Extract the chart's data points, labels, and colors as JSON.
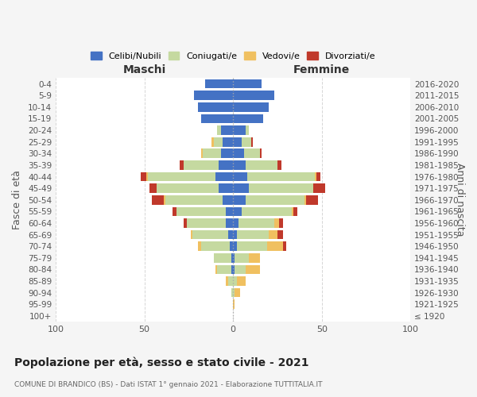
{
  "age_groups": [
    "100+",
    "95-99",
    "90-94",
    "85-89",
    "80-84",
    "75-79",
    "70-74",
    "65-69",
    "60-64",
    "55-59",
    "50-54",
    "45-49",
    "40-44",
    "35-39",
    "30-34",
    "25-29",
    "20-24",
    "15-19",
    "10-14",
    "5-9",
    "0-4"
  ],
  "birth_years": [
    "≤ 1920",
    "1921-1925",
    "1926-1930",
    "1931-1935",
    "1936-1940",
    "1941-1945",
    "1946-1950",
    "1951-1955",
    "1956-1960",
    "1961-1965",
    "1966-1970",
    "1971-1975",
    "1976-1980",
    "1981-1985",
    "1986-1990",
    "1991-1995",
    "1996-2000",
    "2001-2005",
    "2006-2010",
    "2011-2015",
    "2016-2020"
  ],
  "maschi": {
    "celibi": [
      0,
      0,
      0,
      0,
      1,
      1,
      2,
      3,
      4,
      4,
      6,
      8,
      10,
      8,
      7,
      6,
      7,
      18,
      20,
      22,
      16
    ],
    "coniugati": [
      0,
      0,
      1,
      3,
      8,
      10,
      16,
      20,
      22,
      28,
      32,
      35,
      38,
      20,
      10,
      5,
      2,
      0,
      0,
      0,
      0
    ],
    "vedovi": [
      0,
      0,
      0,
      1,
      1,
      0,
      2,
      1,
      0,
      0,
      1,
      0,
      1,
      0,
      1,
      1,
      0,
      0,
      0,
      0,
      0
    ],
    "divorziati": [
      0,
      0,
      0,
      0,
      0,
      0,
      0,
      0,
      2,
      2,
      7,
      4,
      3,
      2,
      0,
      0,
      0,
      0,
      0,
      0,
      0
    ]
  },
  "femmine": {
    "nubili": [
      0,
      0,
      0,
      0,
      1,
      1,
      2,
      2,
      3,
      5,
      7,
      9,
      8,
      7,
      6,
      5,
      7,
      17,
      20,
      23,
      16
    ],
    "coniugate": [
      0,
      0,
      1,
      2,
      6,
      8,
      17,
      18,
      20,
      28,
      33,
      36,
      38,
      18,
      9,
      5,
      2,
      0,
      0,
      0,
      0
    ],
    "vedove": [
      0,
      1,
      3,
      5,
      8,
      6,
      9,
      5,
      3,
      1,
      1,
      0,
      1,
      0,
      0,
      0,
      0,
      0,
      0,
      0,
      0
    ],
    "divorziate": [
      0,
      0,
      0,
      0,
      0,
      0,
      2,
      3,
      2,
      2,
      7,
      7,
      2,
      2,
      1,
      1,
      0,
      0,
      0,
      0,
      0
    ]
  },
  "colors": {
    "celibi_nubili": "#4472c4",
    "coniugati": "#c5d9a0",
    "vedovi": "#f0c060",
    "divorziati": "#c0392b"
  },
  "title": "Popolazione per età, sesso e stato civile - 2021",
  "subtitle": "COMUNE DI BRANDICO (BS) - Dati ISTAT 1° gennaio 2021 - Elaborazione TUTTITALIA.IT",
  "xlabel_left": "Maschi",
  "xlabel_right": "Femmine",
  "ylabel_left": "Fasce di età",
  "ylabel_right": "Anni di nascita",
  "xlim": 100,
  "legend_labels": [
    "Celibi/Nubili",
    "Coniugati/e",
    "Vedovi/e",
    "Divorziati/e"
  ],
  "bg_color": "#f5f5f5",
  "plot_bg": "#ffffff",
  "grid_color": "#cccccc"
}
